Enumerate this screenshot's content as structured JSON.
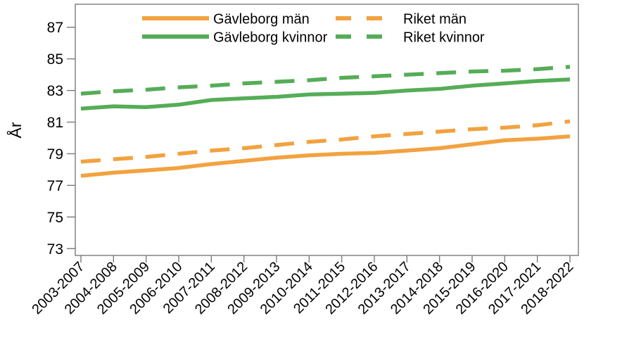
{
  "chart_data": {
    "type": "line",
    "title": "",
    "xlabel": "",
    "ylabel": "År",
    "ylim": [
      73,
      87
    ],
    "yticks": [
      73,
      75,
      77,
      79,
      81,
      83,
      85,
      87
    ],
    "grid": false,
    "legend_position": "top-inside-two-columns",
    "background_color": "#ffffff",
    "axis_color": "#7a7a7a",
    "text_color": "#000000",
    "categories": [
      "2003-2007",
      "2004-2008",
      "2005-2009",
      "2006-2010",
      "2007-2011",
      "2008-2012",
      "2009-2013",
      "2010-2014",
      "2011-2015",
      "2012-2016",
      "2013-2017",
      "2014-2018",
      "2015-2019",
      "2016-2020",
      "2017-2021",
      "2018-2022"
    ],
    "series": [
      {
        "name": "Gävleborg män",
        "color": "#F2A23F",
        "style": "solid",
        "values": [
          77.6,
          77.8,
          77.95,
          78.1,
          78.35,
          78.55,
          78.75,
          78.9,
          79.0,
          79.05,
          79.2,
          79.35,
          79.6,
          79.85,
          79.95,
          80.1
        ]
      },
      {
        "name": "Gävleborg kvinnor",
        "color": "#55AD57",
        "style": "solid",
        "values": [
          81.85,
          82.0,
          81.95,
          82.1,
          82.4,
          82.5,
          82.6,
          82.75,
          82.8,
          82.85,
          83.0,
          83.1,
          83.3,
          83.45,
          83.6,
          83.7
        ]
      },
      {
        "name": "Riket män",
        "color": "#F2A23F",
        "style": "dashed",
        "values": [
          78.5,
          78.65,
          78.8,
          79.0,
          79.2,
          79.35,
          79.55,
          79.75,
          79.9,
          80.1,
          80.25,
          80.4,
          80.55,
          80.65,
          80.8,
          81.05
        ]
      },
      {
        "name": "Riket kvinnor",
        "color": "#55AD57",
        "style": "dashed",
        "values": [
          82.8,
          82.95,
          83.05,
          83.2,
          83.3,
          83.45,
          83.55,
          83.65,
          83.8,
          83.9,
          84.0,
          84.1,
          84.2,
          84.25,
          84.35,
          84.5
        ]
      }
    ]
  }
}
